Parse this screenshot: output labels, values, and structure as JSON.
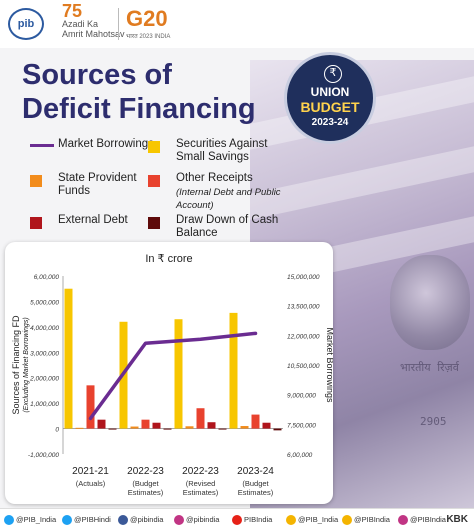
{
  "header": {
    "pib_logo": "pib",
    "azadi_number": "75",
    "azadi_lines": [
      "Azadi",
      "Ka",
      "Amrit Mahotsav"
    ],
    "g20_logo": "G20",
    "g20_sub": "भारत 2023 INDIA"
  },
  "title": {
    "line1": "Sources of",
    "line2": "Deficit Financing"
  },
  "badge": {
    "line1": "UNION",
    "line2": "BUDGET",
    "line3": "2023-24",
    "icon": "rupee-icon"
  },
  "legend": [
    {
      "label": "Market Borrowings",
      "color": "#6a2c91",
      "shape": "line"
    },
    {
      "label": "Securities Against Small Savings",
      "color": "#f7c600",
      "shape": "box"
    },
    {
      "label": "State Provident Funds",
      "color": "#f28c1c",
      "shape": "box"
    },
    {
      "label": "Other Receipts",
      "sublabel": "(Internal Debt and Public Account)",
      "color": "#e8422e",
      "shape": "box"
    },
    {
      "label": "External Debt",
      "color": "#b0151c",
      "shape": "box"
    },
    {
      "label": "Draw Down of Cash Balance",
      "color": "#5e0a0a",
      "shape": "box"
    }
  ],
  "chart_data": {
    "type": "bar",
    "unit_label": "In ₹ crore",
    "categories": [
      "2021-21",
      "2022-23",
      "2022-23",
      "2023-24"
    ],
    "category_sublabels": [
      "(Actuals)",
      "(Budget Estimates)",
      "(Revised Estimates)",
      "(Budget Estimates)"
    ],
    "ylabel_left": "Sources of Financing FD",
    "ylabel_left_sub": "(Excluding Market Borrowings)",
    "ylabel_right": "Market Borrowings",
    "ylim_left": [
      -1000000,
      6000000
    ],
    "yticks_left": [
      "-1,000,000",
      "0",
      "1,000,000",
      "2,000,000",
      "3,000,000",
      "4,000,000",
      "5,000,000",
      "6,00,000"
    ],
    "ylim_right": [
      6000000,
      15000000
    ],
    "yticks_right": [
      "6,00,000",
      "7,500,000",
      "9,000,000",
      "10,500,000",
      "12,000,000",
      "13,500,000",
      "15,000,000"
    ],
    "series": [
      {
        "name": "Securities Against Small Savings",
        "color": "#f7c600",
        "values": [
          5500000,
          4200000,
          4300000,
          4550000
        ]
      },
      {
        "name": "State Provident Funds",
        "color": "#f28c1c",
        "values": [
          30000,
          80000,
          90000,
          100000
        ]
      },
      {
        "name": "Other Receipts",
        "color": "#e8422e",
        "values": [
          1700000,
          350000,
          800000,
          550000
        ]
      },
      {
        "name": "External Debt",
        "color": "#b0151c",
        "values": [
          350000,
          230000,
          250000,
          230000
        ]
      },
      {
        "name": "Draw Down of Cash Balance",
        "color": "#5e0a0a",
        "values": [
          -30000,
          -40000,
          -30000,
          -70000
        ]
      }
    ],
    "line_series": {
      "name": "Market Borrowings",
      "color": "#6a2c91",
      "axis": "right",
      "values": [
        7800000,
        11600000,
        11800000,
        12100000
      ]
    }
  },
  "footer": {
    "items": [
      {
        "icon": "twitter-icon",
        "label": "@PIB_India",
        "color": "#1da1f2"
      },
      {
        "icon": "twitter-icon",
        "label": "@PIBHindi",
        "color": "#1da1f2"
      },
      {
        "icon": "facebook-icon",
        "label": "@pibindia",
        "color": "#3b5998"
      },
      {
        "icon": "instagram-icon",
        "label": "@pibindia",
        "color": "#c13584"
      },
      {
        "icon": "youtube-icon",
        "label": "PIBIndia",
        "color": "#e62117"
      },
      {
        "icon": "koo-icon",
        "label": "@PIB_India",
        "color": "#f4b400"
      },
      {
        "icon": "sharechat-icon",
        "label": "@PIBIndia",
        "color": "#f4b400"
      },
      {
        "icon": "instagram-icon",
        "label": "@PIBIndia",
        "color": "#c13584"
      }
    ],
    "kbk": "KBK"
  }
}
